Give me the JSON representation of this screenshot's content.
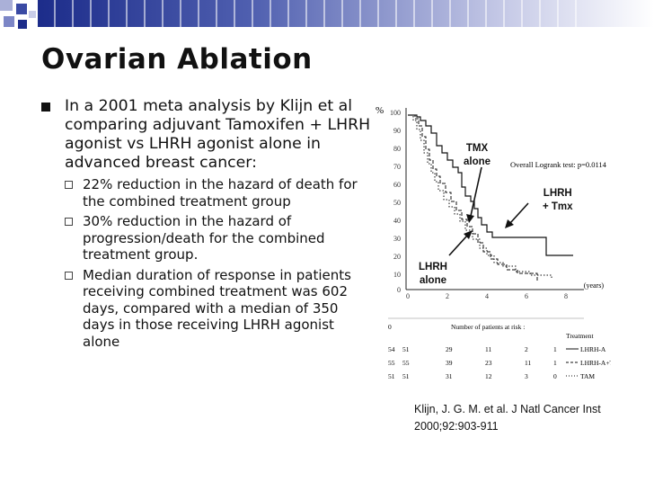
{
  "slide": {
    "title": "Ovarian Ablation",
    "main_bullet": "In a 2001 meta analysis by Klijn et al comparing adjuvant Tamoxifen + LHRH agonist vs LHRH agonist alone in advanced breast cancer:",
    "sub_bullets": [
      "22% reduction in the hazard of death for the combined treatment group",
      "30% reduction in the hazard of progression/death for the combined treatment group.",
      "Median duration of response in patients receiving combined treatment was 602 days, compared with a median of 350 days in those receiving LHRH agonist alone"
    ]
  },
  "figure": {
    "y_unit": "%",
    "y_ticks": [
      "100",
      "90",
      "80",
      "70",
      "60",
      "50",
      "40",
      "30",
      "20",
      "10",
      "0"
    ],
    "x_ticks": [
      "0",
      "2",
      "4",
      "6",
      "8"
    ],
    "x_unit": "(years)",
    "logrank_text": "Overall Logrank test: p=0.0114",
    "callouts": {
      "tmx": [
        "TMX",
        "alone"
      ],
      "lhrh_tmx": [
        "LHRH",
        "+ Tmx"
      ],
      "lhrh": [
        "LHRH",
        "alone"
      ]
    },
    "at_risk_header": "Number of patients at risk :",
    "treatment_header": "Treatment",
    "at_risk_rows": [
      {
        "values": [
          "54",
          "51",
          "29",
          "11",
          "2",
          "1"
        ],
        "label": "LHRH-A"
      },
      {
        "values": [
          "55",
          "55",
          "39",
          "23",
          "11",
          "1"
        ],
        "label": "LHRH-A+TAM"
      },
      {
        "values": [
          "51",
          "51",
          "31",
          "12",
          "3",
          "0"
        ],
        "label": "TAM"
      }
    ]
  },
  "citation": {
    "line1": "Klijn, J. G. M. et al. J Natl Cancer Inst",
    "line2": "2000;92:903-911"
  }
}
